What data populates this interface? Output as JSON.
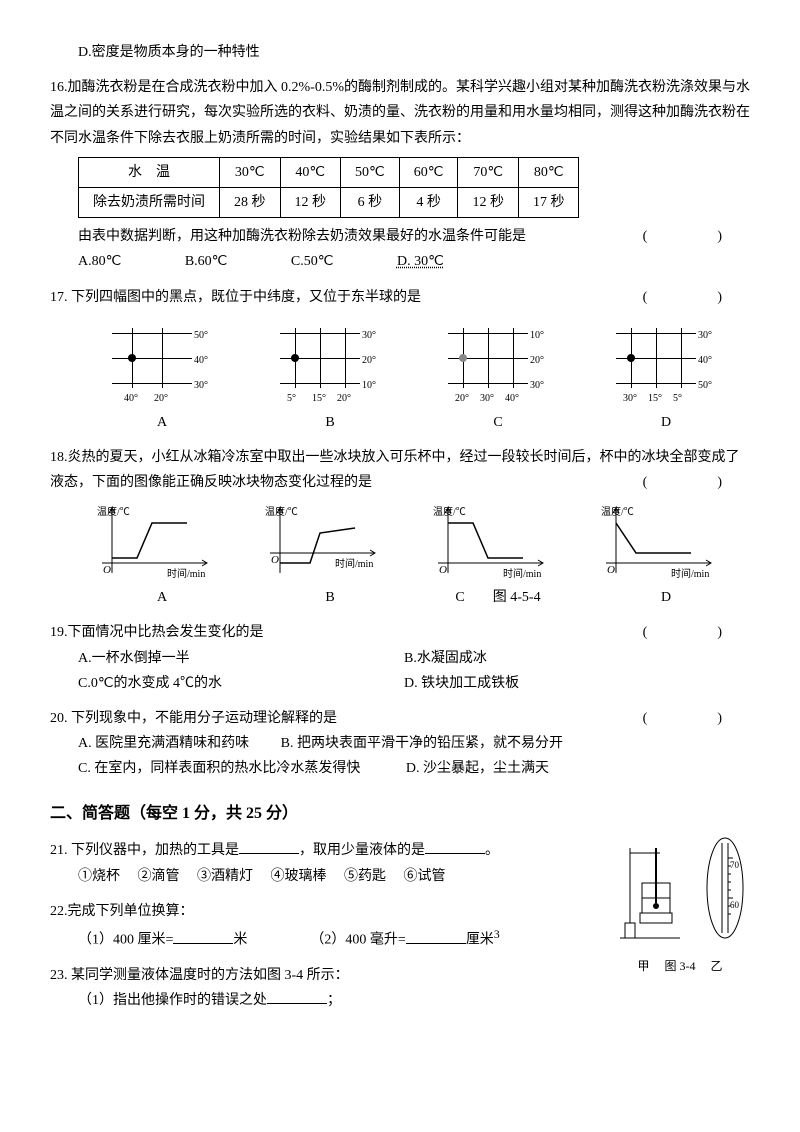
{
  "q15d": "D.密度是物质本身的一种特性",
  "q16": {
    "stem": "16.加酶洗衣粉是在合成洗衣粉中加入 0.2%-0.5%的酶制剂制成的。某科学兴趣小组对某种加酶洗衣粉洗涤效果与水温之间的关系进行研究，每次实验所选的衣料、奶渍的量、洗衣粉的用量和用水量均相同，测得这种加酶洗衣粉在不同水温条件下除去衣服上奶渍所需的时间，实验结果如下表所示：",
    "table": {
      "header": [
        "水　温",
        "30℃",
        "40℃",
        "50℃",
        "60℃",
        "70℃",
        "80℃"
      ],
      "row_label": "除去奶渍所需时间",
      "row": [
        "28 秒",
        "12 秒",
        "6 秒",
        "4 秒",
        "12 秒",
        "17 秒"
      ]
    },
    "conclude": "由表中数据判断，用这种加酶洗衣粉除去奶渍效果最好的水温条件可能是",
    "opts": {
      "A": "A.80℃",
      "B": "B.60℃",
      "C": "C.50℃",
      "D": "D. 30℃"
    }
  },
  "q17": {
    "stem": "17. 下列四幅图中的黑点，既位于中纬度，又位于东半球的是",
    "figs": [
      {
        "lat": [
          "50°",
          "40°",
          "30°"
        ],
        "lon": [
          "40°",
          "20°"
        ],
        "cap": "A",
        "dotcol": "#000"
      },
      {
        "lat": [
          "30°",
          "20°",
          "10°"
        ],
        "lon": [
          "5°",
          "15°",
          "20°"
        ],
        "cap": "B",
        "dotcol": "#000"
      },
      {
        "lat": [
          "10°",
          "20°",
          "30°"
        ],
        "lon": [
          "20°",
          "30°",
          "40°"
        ],
        "cap": "C",
        "dotcol": "#888"
      },
      {
        "lat": [
          "30°",
          "40°",
          "50°"
        ],
        "lon": [
          "30°",
          "15°",
          "5°"
        ],
        "cap": "D",
        "dotcol": "#000"
      }
    ]
  },
  "q18": {
    "stem": "18.炎热的夏天，小红从冰箱冷冻室中取出一些冰块放入可乐杯中，经过一段较长时间后，杯中的冰块全部变成了液态，下面的图像能正确反映冰块物态变化过程的是",
    "ylabel": "温度/℃",
    "xlabel": "时间/min",
    "caps": [
      "A",
      "B",
      "C",
      "D"
    ],
    "figlabel": "图 4-5-4"
  },
  "q19": {
    "stem": "19.下面情况中比热会发生变化的是",
    "A": "A.一杯水倒掉一半",
    "B": "B.水凝固成冰",
    "C": "C.0℃的水变成 4℃的水",
    "D": "D. 铁块加工成铁板"
  },
  "q20": {
    "stem": "20. 下列现象中，不能用分子运动理论解释的是",
    "A": "A. 医院里充满酒精味和药味",
    "B": "B. 把两块表面平滑干净的铅压紧，就不易分开",
    "C": "C. 在室内，同样表面积的热水比冷水蒸发得快",
    "D": "D. 沙尘暴起，尘土满天"
  },
  "section2": "二、简答题（每空 1 分，共 25 分）",
  "q21": {
    "stem_a": "21. 下列仪器中，加热的工具是",
    "stem_b": "，取用少量液体的是",
    "stem_c": "。",
    "items": [
      "①烧杯",
      "②滴管",
      "③酒精灯",
      "④玻璃棒",
      "⑤药匙",
      "⑥试管"
    ]
  },
  "q22": {
    "stem": "22.完成下列单位换算：",
    "a_l": "（1）400 厘米=",
    "a_r": "米",
    "b_l": "（2）400 毫升=",
    "b_r": "厘米"
  },
  "q23": {
    "stem": "23. 某同学测量液体温度时的方法如图 3-4 所示：",
    "sub1": "（1）指出他操作时的错误之处",
    "semicolon": "；"
  },
  "fig34": {
    "left": "甲",
    "mid": "图 3-4",
    "right": "乙",
    "ticks": [
      "70",
      "60"
    ]
  }
}
